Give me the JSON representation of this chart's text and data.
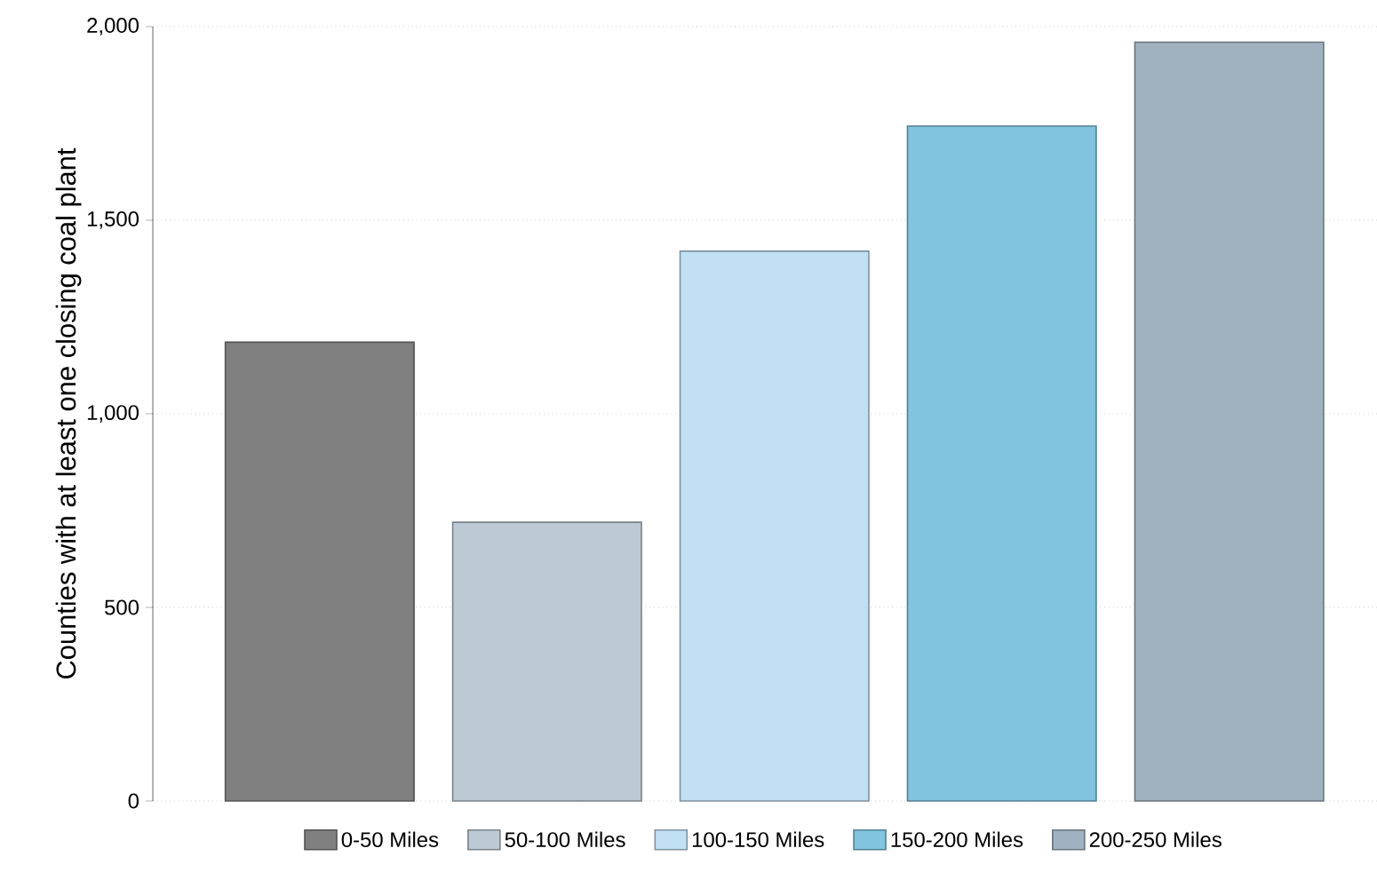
{
  "chart_data": {
    "type": "bar",
    "ylabel": "Counties with at least one closing coal plant",
    "categories": [
      null,
      null,
      null,
      null,
      null
    ],
    "series": [
      {
        "name": "0-50 Miles",
        "color": "#808080",
        "values": [
          1185,
          null,
          null,
          null,
          null
        ]
      },
      {
        "name": "50-100 Miles",
        "color": "#bdc9d5",
        "values": [
          null,
          720,
          null,
          null,
          null
        ]
      },
      {
        "name": "100-150 Miles",
        "color": "#c2e0f4",
        "values": [
          null,
          null,
          1420,
          null,
          null
        ]
      },
      {
        "name": "150-200 Miles",
        "color": "#80c4df",
        "values": [
          null,
          null,
          null,
          1743,
          null
        ]
      },
      {
        "name": "200-250 Miles",
        "color": "#a0b2bf",
        "values": [
          null,
          null,
          null,
          null,
          1960
        ]
      }
    ],
    "ylim": [
      0,
      2000
    ],
    "yticks": [
      0,
      500,
      {
        "value": 1000,
        "label": "1,000"
      },
      {
        "value": 1500,
        "label": "1,500"
      },
      {
        "value": 2000,
        "label": "2,000"
      }
    ],
    "grid": "y",
    "legend": "bottom"
  }
}
